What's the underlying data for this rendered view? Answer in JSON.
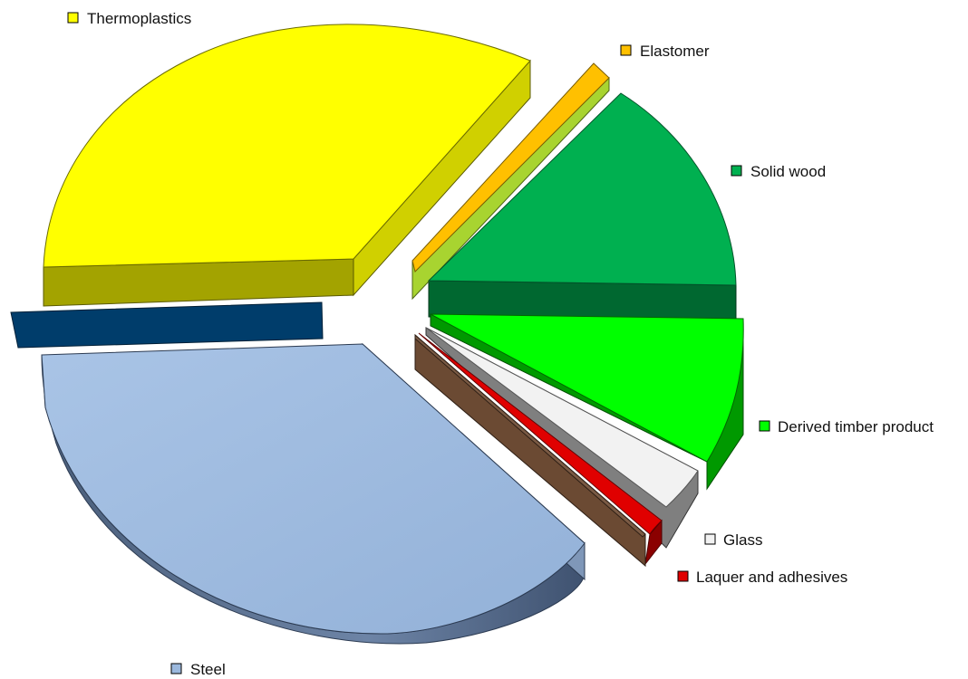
{
  "chart_data": {
    "type": "pie",
    "title": "",
    "style": "3d-exploded",
    "legend_placement": "labels-beside-slices",
    "slices": [
      {
        "label": "Thermoplastics",
        "value": 36.0,
        "color": "#ffff00",
        "side_color": "#a3a300"
      },
      {
        "label": "Elastomer",
        "value": 1.5,
        "color": "#ffc000",
        "side_color": "#a8d430"
      },
      {
        "label": "Solid wood",
        "value": 15.0,
        "color": "#00b050",
        "side_color": "#006830"
      },
      {
        "label": "Derived timber product",
        "value": 9.0,
        "color": "#00ff00",
        "side_color": "#009900"
      },
      {
        "label": "Glass",
        "value": 4.0,
        "color": "#f2f2f2",
        "side_color": "#7f7f7f"
      },
      {
        "label": "Laquer and adhesives",
        "value": 1.0,
        "color": "#e00000",
        "side_color": "#8b0000"
      },
      {
        "label": "",
        "value": 0.5,
        "color": "#7a5a44",
        "side_color": "#6b4a33"
      },
      {
        "label": "Steel",
        "value": 30.0,
        "color": "#9bb8dd",
        "side_color": "#556b8a"
      },
      {
        "label": "",
        "value": 3.0,
        "color": "#003d6b",
        "side_color": "#003060"
      }
    ]
  }
}
